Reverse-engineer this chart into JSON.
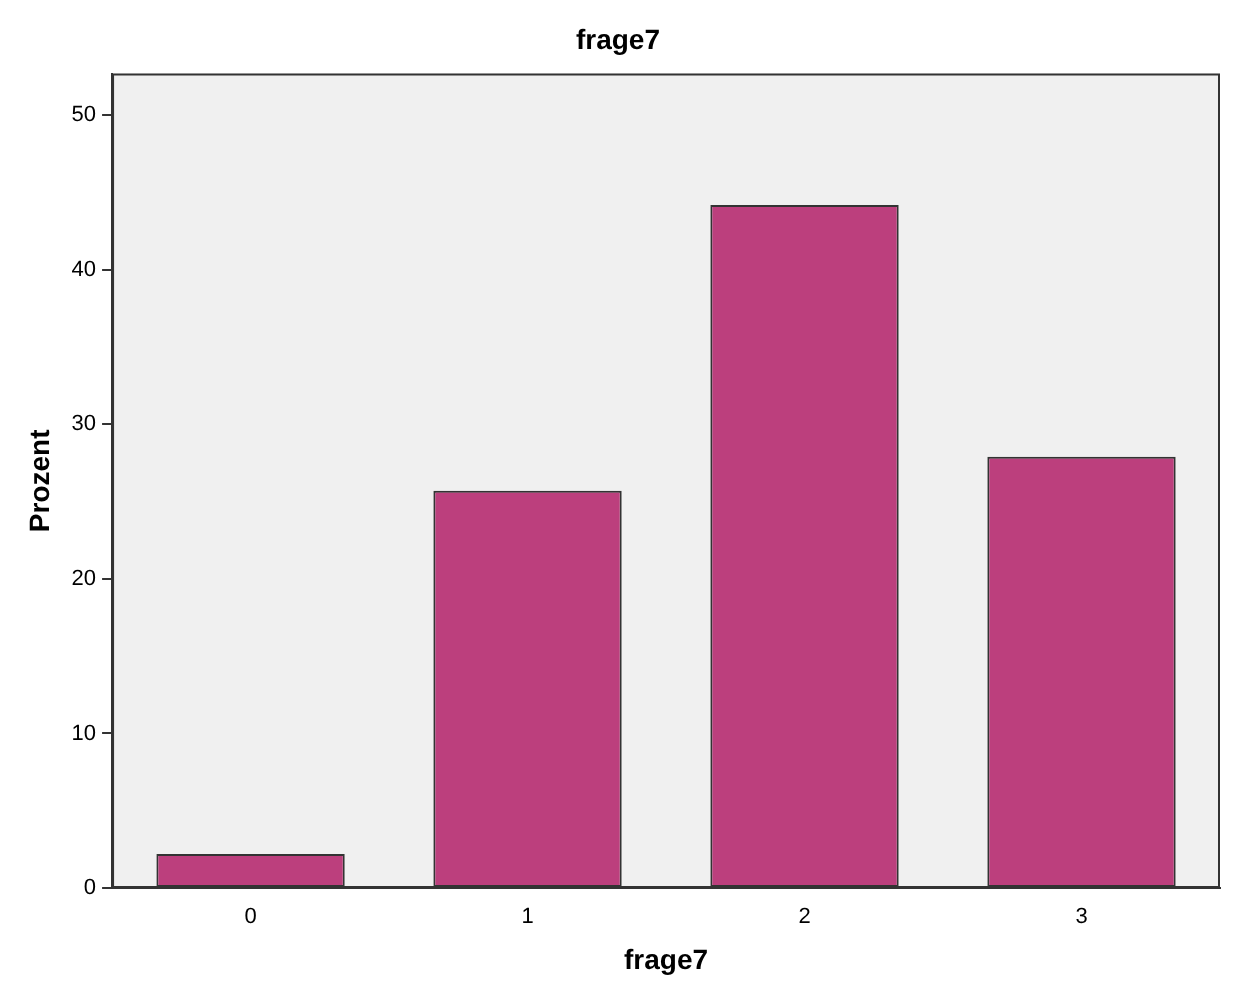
{
  "chart_data": {
    "type": "bar",
    "title": "frage7",
    "xlabel": "frage7",
    "ylabel": "Prozent",
    "categories": [
      "0",
      "1",
      "2",
      "3"
    ],
    "series": [
      {
        "color": "#bc3f7d",
        "values": [
          2.2,
          25.7,
          44.2,
          27.9
        ]
      }
    ],
    "ylim": [
      0,
      52.7
    ],
    "yticks": [
      0,
      10,
      20,
      30,
      40,
      50
    ],
    "grid": false,
    "legend": false
  }
}
